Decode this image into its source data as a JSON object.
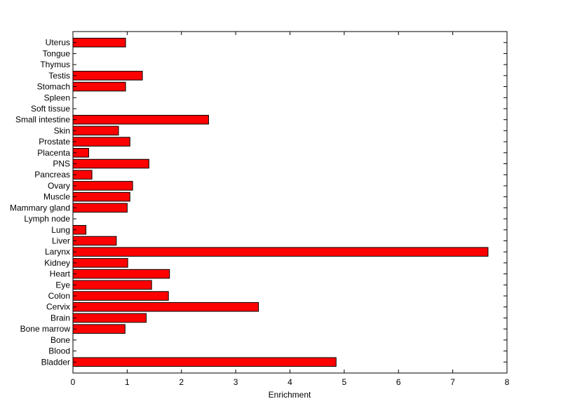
{
  "chart_data": {
    "type": "bar",
    "orientation": "horizontal",
    "title": "",
    "xlabel": "Enrichment",
    "ylabel": "",
    "xlim": [
      0,
      8
    ],
    "xticks": [
      "0",
      "1",
      "2",
      "3",
      "4",
      "5",
      "6",
      "7",
      "8"
    ],
    "grid": false,
    "bar_color": "#ff0000",
    "edge_color": "#000000",
    "categories": [
      "Bladder",
      "Blood",
      "Bone",
      "Bone marrow",
      "Brain",
      "Cervix",
      "Colon",
      "Eye",
      "Heart",
      "Kidney",
      "Larynx",
      "Liver",
      "Lung",
      "Lymph node",
      "Mammary gland",
      "Muscle",
      "Ovary",
      "Pancreas",
      "PNS",
      "Placenta",
      "Prostate",
      "Skin",
      "Small intestine",
      "Soft tissue",
      "Spleen",
      "Stomach",
      "Testis",
      "Thymus",
      "Tongue",
      "Uterus"
    ],
    "values": [
      4.85,
      0,
      0,
      0.96,
      1.35,
      3.42,
      1.76,
      1.45,
      1.78,
      1.01,
      7.65,
      0.8,
      0.24,
      0,
      1.0,
      1.05,
      1.1,
      0.35,
      1.4,
      0.29,
      1.05,
      0.84,
      2.5,
      0,
      0,
      0.97,
      1.28,
      0,
      0,
      0.97
    ]
  }
}
